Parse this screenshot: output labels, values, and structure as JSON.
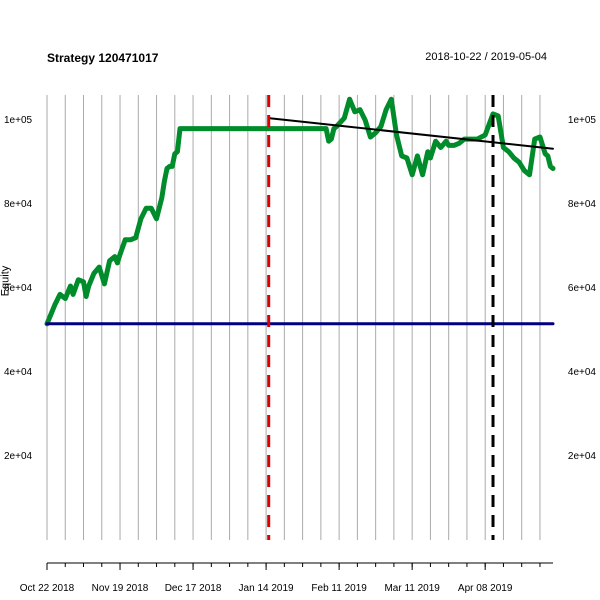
{
  "header": {
    "title": "Strategy 120471017",
    "date_range": "2018-10-22 / 2019-05-04"
  },
  "chart_data": {
    "type": "line",
    "title": "Strategy 120471017",
    "subtitle": "2018-10-22 / 2019-05-04",
    "ylabel": "Equity",
    "xlabel": "",
    "xlim": [
      "2018-10-22",
      "2019-05-04"
    ],
    "ylim": [
      0,
      106000
    ],
    "y_ticks": [
      20000,
      40000,
      60000,
      80000,
      100000
    ],
    "y_tick_labels": [
      "2e+04",
      "4e+04",
      "6e+04",
      "8e+04",
      "1e+05"
    ],
    "x_ticks": [
      "2018-10-22",
      "2018-11-19",
      "2018-12-17",
      "2019-01-14",
      "2019-02-11",
      "2019-03-11",
      "2019-04-08"
    ],
    "x_tick_labels": [
      "Oct 22 2018",
      "Nov 19 2018",
      "Dec 17 2018",
      "Jan 14 2019",
      "Feb 11 2019",
      "Mar 11 2019",
      "Apr 08 2019"
    ],
    "grid": "vertical",
    "series": [
      {
        "color": "#008c2a",
        "x": [
          "2018-10-22",
          "2018-10-25",
          "2018-10-27",
          "2018-10-29",
          "2018-10-31",
          "2018-11-01",
          "2018-11-03",
          "2018-11-05",
          "2018-11-06",
          "2018-11-07",
          "2018-11-09",
          "2018-11-11",
          "2018-11-13",
          "2018-11-15",
          "2018-11-17",
          "2018-11-18",
          "2018-11-19",
          "2018-11-21",
          "2018-11-23",
          "2018-11-25",
          "2018-11-27",
          "2018-11-29",
          "2018-12-01",
          "2018-12-03",
          "2018-12-05",
          "2018-12-06",
          "2018-12-07",
          "2018-12-08",
          "2018-12-09",
          "2018-12-10",
          "2018-12-11",
          "2018-12-12",
          "2018-12-14",
          "2018-12-15",
          "2018-12-16",
          "2018-12-17",
          "2018-12-18",
          "2019-02-06",
          "2019-02-07",
          "2019-02-08",
          "2019-02-09",
          "2019-02-10",
          "2019-02-13",
          "2019-02-15",
          "2019-02-17",
          "2019-02-19",
          "2019-02-21",
          "2019-02-23",
          "2019-02-25",
          "2019-02-27",
          "2019-03-01",
          "2019-03-03",
          "2019-03-05",
          "2019-03-07",
          "2019-03-09",
          "2019-03-11",
          "2019-03-13",
          "2019-03-15",
          "2019-03-17",
          "2019-03-18",
          "2019-03-20",
          "2019-03-22",
          "2019-03-24",
          "2019-03-25",
          "2019-03-27",
          "2019-03-29",
          "2019-03-31",
          "2019-04-02",
          "2019-04-05",
          "2019-04-08",
          "2019-04-11",
          "2019-04-13",
          "2019-04-15",
          "2019-04-17",
          "2019-04-19",
          "2019-04-21",
          "2019-04-23",
          "2019-04-25",
          "2019-04-27",
          "2019-04-29",
          "2019-05-01",
          "2019-05-02",
          "2019-05-03",
          "2019-05-04"
        ],
        "values": [
          51500,
          56000,
          58500,
          57500,
          60500,
          58500,
          62000,
          61500,
          58000,
          60500,
          63500,
          65000,
          61000,
          66500,
          67500,
          66000,
          68000,
          71500,
          71500,
          72000,
          76500,
          79000,
          79000,
          76500,
          81500,
          85500,
          88500,
          89000,
          89000,
          92000,
          92500,
          98000,
          98000,
          98000,
          98000,
          98000,
          98000,
          98000,
          95000,
          95500,
          98000,
          98500,
          100500,
          105000,
          102000,
          102500,
          100000,
          96000,
          97000,
          98500,
          102500,
          105000,
          96500,
          91500,
          91000,
          87000,
          91500,
          87000,
          92500,
          91000,
          95000,
          93500,
          95000,
          94000,
          94000,
          94500,
          95500,
          95500,
          95500,
          96500,
          101500,
          101000,
          93500,
          92500,
          91000,
          90000,
          88000,
          87000,
          95500,
          96000,
          92000,
          91500,
          89000,
          88500
        ]
      },
      {
        "color": "#000080",
        "x": [
          "2018-10-22",
          "2019-05-04"
        ],
        "values": [
          51500,
          51500
        ]
      },
      {
        "color": "#000000",
        "x": [
          "2019-01-15",
          "2019-05-04"
        ],
        "values": [
          100500,
          93200
        ]
      }
    ],
    "vlines": [
      {
        "x": "2019-01-15",
        "color": "#dd0000",
        "style": "dashed"
      },
      {
        "x": "2019-04-11",
        "color": "#000000",
        "style": "dashed"
      }
    ]
  }
}
